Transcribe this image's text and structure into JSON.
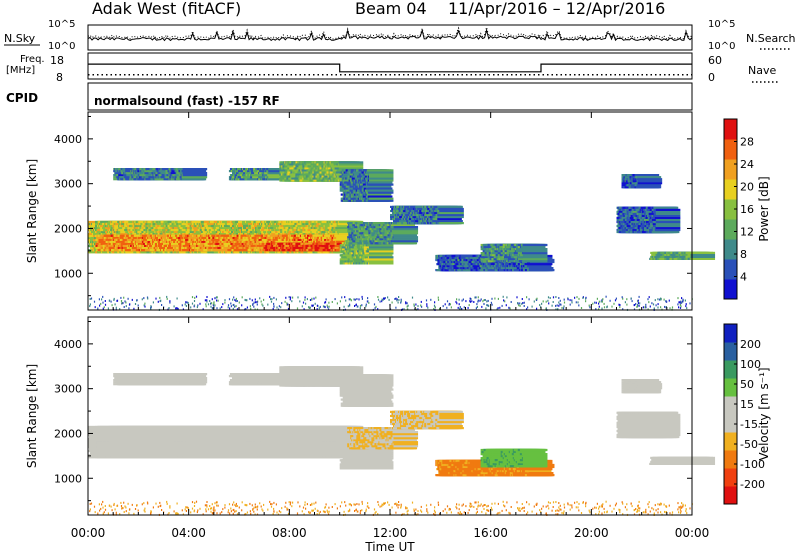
{
  "header": {
    "station": "Adak West (fitACF)",
    "beam": "Beam 04",
    "date_range": "11/Apr/2016 – 12/Apr/2016"
  },
  "colors": {
    "power_scale": [
      "#1010d0",
      "#2a50b8",
      "#3f8a8a",
      "#5caa5c",
      "#88c040",
      "#e8d020",
      "#f0a020",
      "#f06010",
      "#e01010"
    ],
    "velocity_scale": [
      "#e01010",
      "#f04010",
      "#f07a10",
      "#f0b020",
      "#c8c8c0",
      "#c8c8c0",
      "#66c040",
      "#3a9a60",
      "#2a60a0",
      "#1020c0"
    ],
    "ground_scatter": "#b8b8b0"
  },
  "chart_data": [
    {
      "type": "line",
      "panel": "sky-search-noise",
      "left_label": "N.Sky",
      "right_label": "N.Search",
      "left_ticks": [
        "10^5",
        "10^0"
      ],
      "right_ticks": [
        "10^5",
        "10^0"
      ]
    },
    {
      "type": "line",
      "panel": "frequency-nave",
      "left_label": "Freq.\n[MHz]",
      "left_ticks": [
        "18",
        "8"
      ],
      "right_label": "Nave",
      "right_ticks": [
        "60",
        "0"
      ],
      "freq_series": {
        "name": "Freq.",
        "x": [
          0,
          10.0,
          10.0,
          18.0,
          18.0,
          24
        ],
        "y": [
          13.8,
          13.8,
          10.6,
          10.6,
          13.8,
          13.8
        ]
      },
      "nave_level": 8
    },
    {
      "type": "table",
      "panel": "cpid",
      "label": "CPID",
      "value": "normalsound (fast) -157 RF"
    },
    {
      "type": "heatmap",
      "panel": "power",
      "ylabel": "Slant Range [km]",
      "y_ticks": [
        1000,
        2000,
        3000,
        4000
      ],
      "ylim": [
        180,
        4600
      ],
      "xlim": [
        0,
        24
      ],
      "colorbar_label": "Power [dB]",
      "colorbar_ticks": [
        4,
        8,
        12,
        16,
        20,
        24,
        28
      ],
      "colorbar_range": [
        0,
        32
      ]
    },
    {
      "type": "heatmap",
      "panel": "velocity",
      "ylabel": "Slant Range [km]",
      "y_ticks": [
        1000,
        2000,
        3000,
        4000
      ],
      "ylim": [
        180,
        4600
      ],
      "xlim": [
        0,
        24
      ],
      "colorbar_label": "Velocity [m s⁻¹]",
      "colorbar_ticks": [
        "-200",
        "-100",
        "-50",
        "-15",
        "15",
        "50",
        "100",
        "200"
      ],
      "x_ticks": [
        "00:00",
        "04:00",
        "08:00",
        "12:00",
        "16:00",
        "20:00",
        "00:00"
      ],
      "xlabel": "Time UT"
    }
  ],
  "echo_regions": [
    {
      "t0": 0.0,
      "t1": 10.0,
      "r0": 1450,
      "r1": 2150,
      "power": 18,
      "vel": 0
    },
    {
      "t0": 0.3,
      "t1": 9.9,
      "r0": 1500,
      "r1": 1850,
      "power": 24,
      "vel": 0
    },
    {
      "t0": 7.0,
      "t1": 10.0,
      "r0": 1500,
      "r1": 1700,
      "power": 28,
      "vel": 0
    },
    {
      "t0": 1.0,
      "t1": 3.8,
      "r0": 3080,
      "r1": 3350,
      "power": 8,
      "vel": 0
    },
    {
      "t0": 5.6,
      "t1": 7.2,
      "r0": 3080,
      "r1": 3350,
      "power": 10,
      "vel": 0
    },
    {
      "t0": 7.6,
      "t1": 10.0,
      "r0": 3050,
      "r1": 3500,
      "power": 14,
      "vel": 0
    },
    {
      "t0": 10.0,
      "t1": 11.2,
      "r0": 1200,
      "r1": 1750,
      "power": 14,
      "vel": 0
    },
    {
      "t0": 10.3,
      "t1": 12.2,
      "r0": 1650,
      "r1": 2150,
      "power": 10,
      "vel": -15
    },
    {
      "t0": 12.0,
      "t1": 14.0,
      "r0": 2100,
      "r1": 2500,
      "power": 8,
      "vel": -15
    },
    {
      "t0": 10.0,
      "t1": 11.2,
      "r0": 2600,
      "r1": 3300,
      "power": 8,
      "vel": 0
    },
    {
      "t0": 13.8,
      "t1": 17.6,
      "r0": 1050,
      "r1": 1400,
      "power": 6,
      "vel": -60
    },
    {
      "t0": 15.6,
      "t1": 17.3,
      "r0": 1250,
      "r1": 1650,
      "power": 10,
      "vel": 40
    },
    {
      "t0": 21.0,
      "t1": 22.6,
      "r0": 1900,
      "r1": 2500,
      "power": 6,
      "vel": 0
    },
    {
      "t0": 22.3,
      "t1": 24.0,
      "r0": 1300,
      "r1": 1500,
      "power": 12,
      "vel": 0
    },
    {
      "t0": 21.2,
      "t1": 21.9,
      "r0": 2900,
      "r1": 3200,
      "power": 6,
      "vel": 0
    }
  ]
}
